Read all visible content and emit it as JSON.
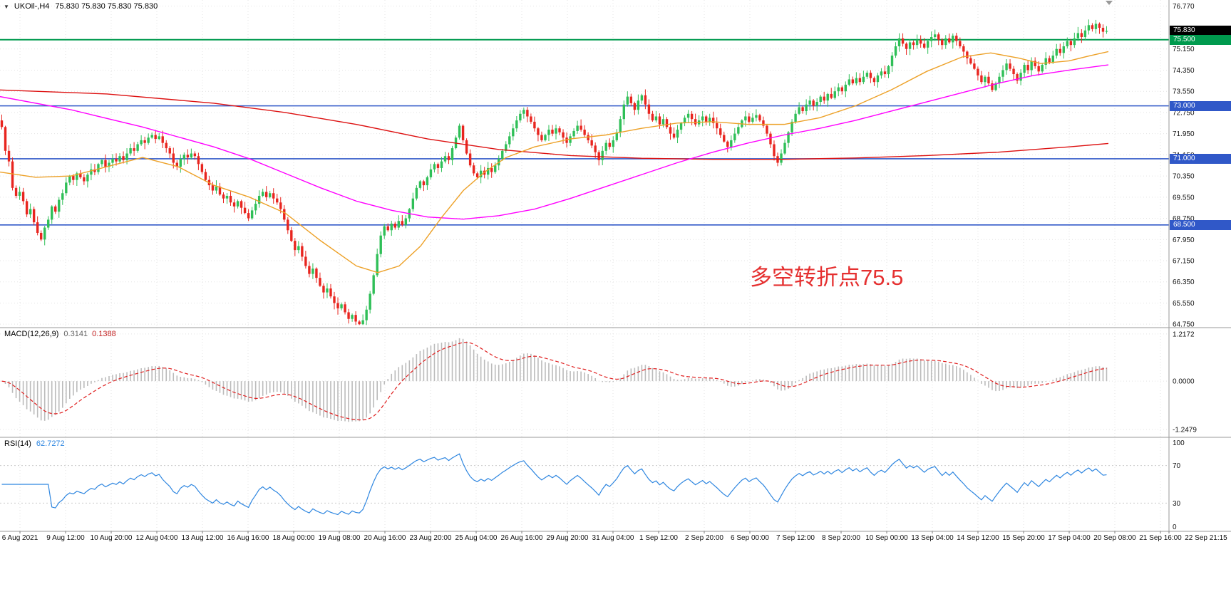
{
  "header": {
    "dropdown_icon": "▼",
    "symbol": "UKOil-,H4",
    "ohlc": "75.830 75.830 75.830 75.830"
  },
  "chart_data": {
    "type": "candlestick",
    "symbol": "UKOil-",
    "timeframe": "H4",
    "price_axis": {
      "labels": [
        "76.770",
        "75.150",
        "74.350",
        "73.550",
        "72.750",
        "71.950",
        "71.150",
        "70.350",
        "69.550",
        "68.750",
        "67.950",
        "67.150",
        "66.350",
        "65.550",
        "64.750"
      ],
      "max": 77.0,
      "min": 64.62
    },
    "time_axis_labels": [
      "6 Aug 2021",
      "9 Aug 12:00",
      "10 Aug 20:00",
      "12 Aug 04:00",
      "13 Aug 12:00",
      "16 Aug 16:00",
      "18 Aug 00:00",
      "19 Aug 08:00",
      "20 Aug 16:00",
      "23 Aug 20:00",
      "25 Aug 04:00",
      "26 Aug 16:00",
      "29 Aug 20:00",
      "31 Aug 04:00",
      "1 Sep 12:00",
      "2 Sep 20:00",
      "6 Sep 00:00",
      "7 Sep 12:00",
      "8 Sep 20:00",
      "10 Sep 00:00",
      "13 Sep 04:00",
      "14 Sep 12:00",
      "15 Sep 20:00",
      "17 Sep 04:00",
      "20 Sep 08:00",
      "21 Sep 16:00",
      "22 Sep 21:15"
    ],
    "open_rule": "previous_close",
    "closes": [
      72.2,
      71.3,
      70.9,
      69.9,
      69.6,
      69.75,
      69.4,
      68.9,
      69.1,
      68.6,
      68.2,
      67.95,
      68.4,
      68.7,
      69.2,
      69.0,
      69.45,
      69.7,
      70.1,
      70.35,
      70.2,
      70.45,
      70.3,
      70.15,
      70.4,
      70.6,
      70.5,
      70.8,
      70.95,
      70.7,
      70.85,
      71.0,
      70.9,
      71.1,
      70.95,
      71.2,
      71.4,
      71.3,
      71.55,
      71.7,
      71.6,
      71.8,
      71.9,
      71.75,
      71.85,
      71.6,
      71.4,
      71.2,
      70.85,
      70.7,
      71.0,
      71.15,
      71.05,
      71.2,
      71.1,
      70.8,
      70.5,
      70.2,
      70.0,
      69.8,
      69.95,
      69.65,
      69.5,
      69.6,
      69.35,
      69.2,
      69.4,
      69.15,
      68.95,
      68.75,
      69.05,
      69.3,
      69.6,
      69.75,
      69.55,
      69.7,
      69.5,
      69.35,
      69.1,
      68.7,
      68.3,
      67.9,
      67.55,
      67.7,
      67.3,
      66.95,
      66.65,
      66.85,
      66.5,
      66.2,
      65.95,
      66.1,
      65.8,
      65.55,
      65.35,
      65.5,
      65.2,
      64.95,
      65.1,
      64.85,
      64.75,
      64.9,
      65.3,
      65.9,
      66.6,
      67.4,
      68.1,
      68.45,
      68.3,
      68.55,
      68.4,
      68.65,
      68.5,
      68.75,
      69.1,
      69.5,
      69.9,
      70.15,
      70.0,
      70.3,
      70.6,
      70.8,
      70.65,
      70.9,
      71.1,
      70.95,
      71.4,
      71.8,
      72.25,
      71.7,
      71.2,
      70.75,
      70.45,
      70.3,
      70.55,
      70.4,
      70.65,
      70.5,
      70.75,
      71.0,
      71.3,
      71.55,
      71.85,
      72.15,
      72.45,
      72.7,
      72.85,
      72.6,
      72.4,
      72.15,
      71.9,
      71.7,
      71.9,
      72.1,
      71.95,
      72.15,
      72.0,
      71.8,
      71.6,
      71.85,
      72.05,
      72.25,
      72.1,
      71.9,
      71.7,
      71.5,
      71.25,
      70.95,
      71.3,
      71.6,
      71.45,
      71.7,
      72.0,
      72.5,
      73.05,
      73.35,
      73.1,
      72.85,
      73.2,
      73.4,
      73.05,
      72.7,
      72.45,
      72.6,
      72.3,
      72.5,
      72.2,
      71.95,
      71.8,
      72.1,
      72.35,
      72.55,
      72.7,
      72.5,
      72.3,
      72.45,
      72.6,
      72.4,
      72.55,
      72.35,
      72.15,
      71.9,
      71.65,
      71.45,
      71.7,
      71.95,
      72.2,
      72.45,
      72.6,
      72.4,
      72.55,
      72.65,
      72.45,
      72.25,
      71.95,
      71.55,
      71.1,
      70.85,
      71.2,
      71.6,
      72.0,
      72.4,
      72.7,
      72.95,
      72.8,
      73.05,
      73.2,
      73.0,
      73.15,
      73.35,
      73.2,
      73.45,
      73.3,
      73.55,
      73.7,
      73.55,
      73.8,
      74.0,
      73.85,
      74.05,
      73.9,
      74.1,
      74.25,
      74.05,
      73.9,
      74.15,
      74.3,
      74.2,
      74.5,
      74.9,
      75.25,
      75.55,
      75.35,
      75.15,
      75.4,
      75.3,
      75.5,
      75.35,
      75.2,
      75.45,
      75.6,
      75.7,
      75.5,
      75.3,
      75.55,
      75.4,
      75.65,
      75.45,
      75.25,
      75.05,
      74.8,
      74.6,
      74.4,
      74.15,
      73.9,
      74.1,
      73.85,
      73.6,
      73.85,
      74.1,
      74.35,
      74.6,
      74.4,
      74.2,
      73.95,
      74.25,
      74.55,
      74.35,
      74.7,
      74.5,
      74.3,
      74.55,
      74.8,
      74.65,
      74.9,
      75.15,
      75.0,
      75.25,
      75.45,
      75.3,
      75.55,
      75.75,
      75.6,
      75.85,
      76.05,
      75.9,
      76.1,
      75.95,
      75.8,
      75.83
    ],
    "horizontal_lines": [
      {
        "label": "75.830",
        "price": 75.83,
        "color": "#000000",
        "line": "none",
        "width": 0
      },
      {
        "label": "75.500",
        "price": 75.5,
        "color": "#009a4e",
        "line": "solid",
        "width": 2
      },
      {
        "label": "73.000",
        "price": 73.0,
        "color": "#3058c8",
        "line": "solid",
        "width": 1.6
      },
      {
        "label": "71.000",
        "price": 71.0,
        "color": "#3058c8",
        "line": "solid",
        "width": 1.6
      },
      {
        "label": "68.500",
        "price": 68.5,
        "color": "#3058c8",
        "line": "solid",
        "width": 1.6
      }
    ],
    "ma_lines": [
      {
        "name": "ma-slow-red",
        "color": "#dd1111",
        "points": [
          [
            0,
            73.6
          ],
          [
            150,
            73.45
          ],
          [
            300,
            73.1
          ],
          [
            400,
            72.75
          ],
          [
            500,
            72.3
          ],
          [
            600,
            71.75
          ],
          [
            700,
            71.35
          ],
          [
            800,
            71.12
          ],
          [
            900,
            71.02
          ],
          [
            1000,
            70.98
          ],
          [
            1100,
            70.98
          ],
          [
            1200,
            71.03
          ],
          [
            1300,
            71.12
          ],
          [
            1400,
            71.25
          ],
          [
            1500,
            71.45
          ],
          [
            1555,
            71.58
          ]
        ]
      },
      {
        "name": "ma-mid-magenta",
        "color": "#ff00ff",
        "points": [
          [
            0,
            73.35
          ],
          [
            100,
            72.85
          ],
          [
            200,
            72.2
          ],
          [
            300,
            71.45
          ],
          [
            350,
            71.0
          ],
          [
            400,
            70.45
          ],
          [
            450,
            69.9
          ],
          [
            500,
            69.4
          ],
          [
            550,
            69.05
          ],
          [
            600,
            68.8
          ],
          [
            650,
            68.72
          ],
          [
            700,
            68.85
          ],
          [
            750,
            69.1
          ],
          [
            800,
            69.5
          ],
          [
            850,
            69.95
          ],
          [
            900,
            70.4
          ],
          [
            950,
            70.85
          ],
          [
            1000,
            71.25
          ],
          [
            1050,
            71.6
          ],
          [
            1100,
            71.9
          ],
          [
            1150,
            72.15
          ],
          [
            1200,
            72.45
          ],
          [
            1250,
            72.8
          ],
          [
            1300,
            73.15
          ],
          [
            1350,
            73.5
          ],
          [
            1400,
            73.85
          ],
          [
            1450,
            74.15
          ],
          [
            1500,
            74.35
          ],
          [
            1555,
            74.55
          ]
        ]
      },
      {
        "name": "ma-fast-orange",
        "color": "#eda128",
        "points": [
          [
            0,
            70.5
          ],
          [
            50,
            70.3
          ],
          [
            100,
            70.35
          ],
          [
            150,
            70.7
          ],
          [
            200,
            71.05
          ],
          [
            250,
            70.7
          ],
          [
            300,
            70.0
          ],
          [
            350,
            69.55
          ],
          [
            400,
            68.95
          ],
          [
            450,
            67.9
          ],
          [
            500,
            66.95
          ],
          [
            530,
            66.7
          ],
          [
            560,
            66.95
          ],
          [
            590,
            67.7
          ],
          [
            620,
            68.8
          ],
          [
            650,
            69.8
          ],
          [
            680,
            70.5
          ],
          [
            710,
            71.05
          ],
          [
            750,
            71.45
          ],
          [
            800,
            71.75
          ],
          [
            850,
            71.9
          ],
          [
            900,
            72.15
          ],
          [
            950,
            72.35
          ],
          [
            1000,
            72.4
          ],
          [
            1050,
            72.3
          ],
          [
            1100,
            72.3
          ],
          [
            1150,
            72.55
          ],
          [
            1200,
            73.0
          ],
          [
            1250,
            73.6
          ],
          [
            1300,
            74.3
          ],
          [
            1350,
            74.85
          ],
          [
            1390,
            75.0
          ],
          [
            1430,
            74.8
          ],
          [
            1460,
            74.6
          ],
          [
            1500,
            74.7
          ],
          [
            1530,
            74.9
          ],
          [
            1555,
            75.05
          ]
        ]
      }
    ],
    "macd": {
      "name": "MACD(12,26,9)",
      "main_value": "0.3141",
      "signal_value": "0.1388",
      "params": [
        12,
        26,
        9
      ],
      "axis_labels": [
        "1.2172",
        "0.0000",
        "-1.2479"
      ],
      "axis_values": [
        1.2172,
        0,
        -1.2479
      ],
      "max": 1.38,
      "min": -1.45
    },
    "rsi": {
      "name": "RSI(14)",
      "value": "62.7272",
      "period": 14,
      "axis_labels": [
        "100",
        "70",
        "30",
        "0"
      ],
      "axis_values": [
        100,
        70,
        30,
        0
      ],
      "levels": [
        70,
        30
      ]
    },
    "annotation": {
      "text": "多空转折点75.5",
      "color": "#e53030"
    },
    "colors": {
      "up": "#2fbf57",
      "down": "#e8251f",
      "macd_hist": "#bbbbbb",
      "macd_signal": "#e02020",
      "rsi_line": "#2e86e0",
      "grid": "#e3e3e3",
      "separator": "#9a9a9a"
    }
  }
}
